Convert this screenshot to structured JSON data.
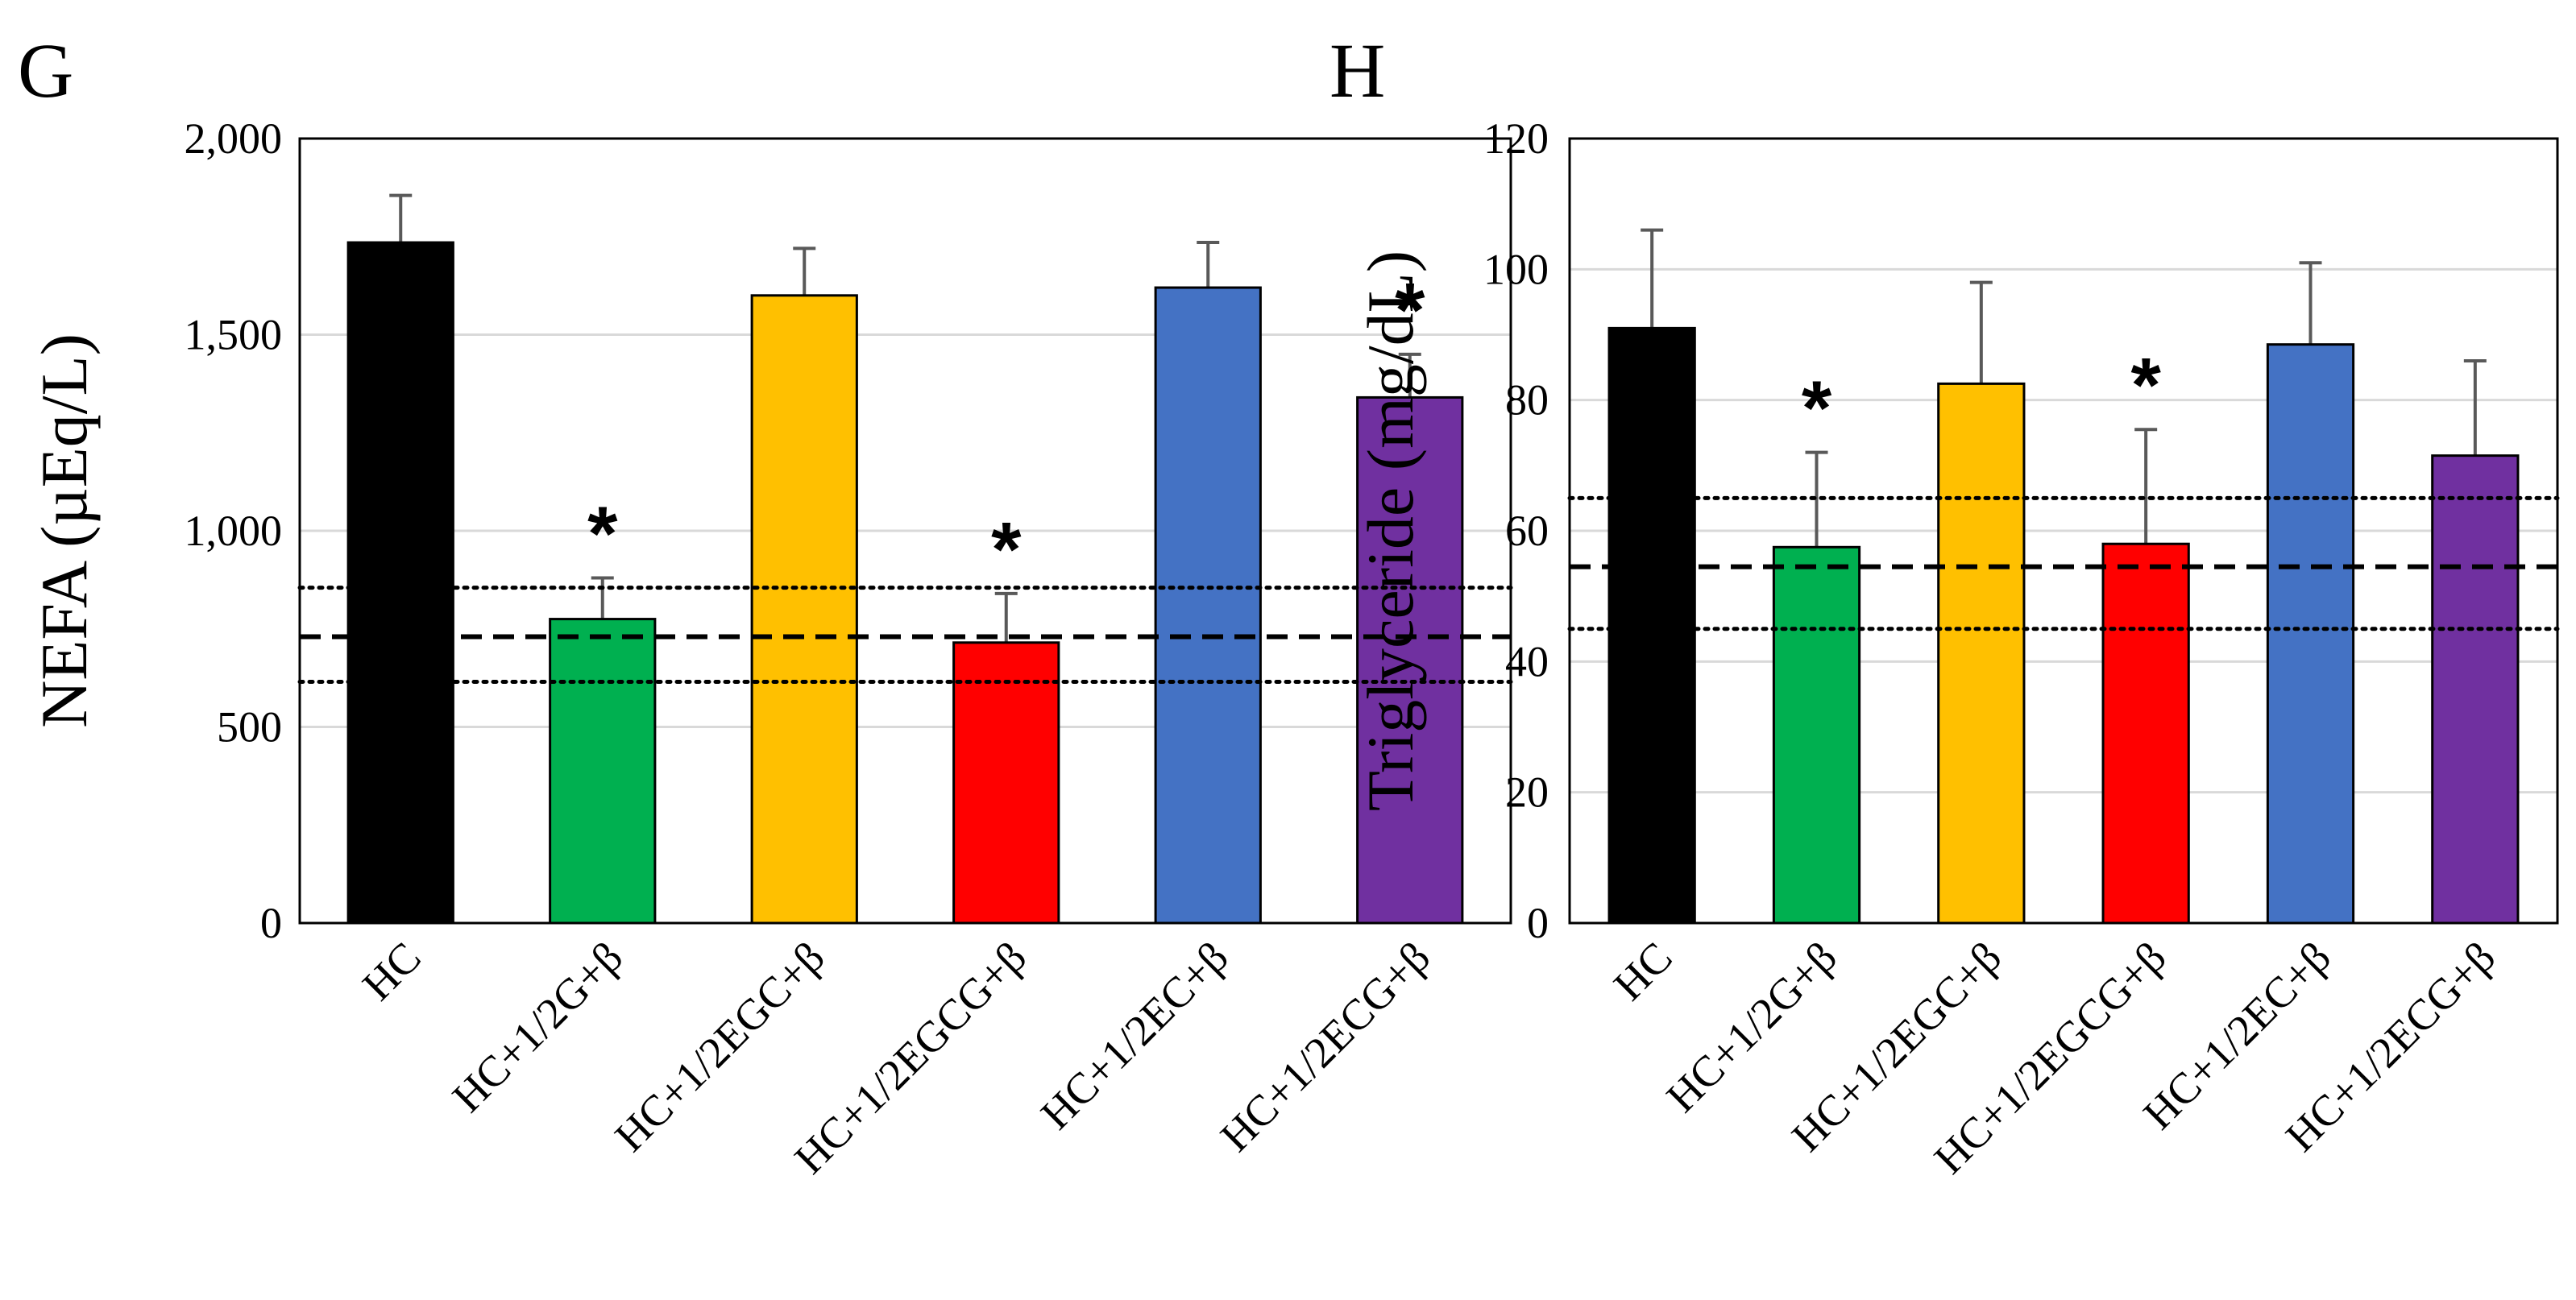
{
  "chart_data": [
    {
      "panel": "G",
      "type": "bar",
      "ylabel": "NEFA (µEq/L)",
      "ylim": [
        0,
        2000
      ],
      "yticks": [
        0,
        500,
        1000,
        1500,
        2000
      ],
      "ytick_labels": [
        "0",
        "500",
        "1,000",
        "1,500",
        "2,000"
      ],
      "grid": true,
      "categories": [
        "HC",
        "HC+1/2G+β",
        "HC+1/2EGC+β",
        "HC+1/2EGCG+β",
        "HC+1/2EC+β",
        "HC+1/2ECG+β"
      ],
      "values": [
        1735,
        775,
        1600,
        715,
        1620,
        1340
      ],
      "errors": [
        120,
        105,
        120,
        125,
        115,
        110
      ],
      "colors": [
        "#000000",
        "#00B050",
        "#FFC000",
        "#FF0000",
        "#4472C4",
        "#7030A0"
      ],
      "significance": [
        "",
        "*",
        "",
        "*",
        "",
        "*"
      ],
      "reference_lines": {
        "mean": 730,
        "upper": 855,
        "lower": 615
      }
    },
    {
      "panel": "H",
      "type": "bar",
      "ylabel": "Triglyceride (mg/dL)",
      "ylim": [
        0,
        120
      ],
      "yticks": [
        0,
        20,
        40,
        60,
        80,
        100,
        120
      ],
      "ytick_labels": [
        "0",
        "20",
        "40",
        "60",
        "80",
        "100",
        "120"
      ],
      "grid": true,
      "categories": [
        "HC",
        "HC+1/2G+β",
        "HC+1/2EGC+β",
        "HC+1/2EGCG+β",
        "HC+1/2EC+β",
        "HC+1/2ECG+β"
      ],
      "values": [
        91,
        57.5,
        82.5,
        58,
        88.5,
        71.5
      ],
      "errors": [
        15,
        14.5,
        15.5,
        17.5,
        12.5,
        14.5
      ],
      "colors": [
        "#000000",
        "#00B050",
        "#FFC000",
        "#FF0000",
        "#4472C4",
        "#7030A0"
      ],
      "significance": [
        "",
        "*",
        "",
        "*",
        "",
        ""
      ],
      "reference_lines": {
        "mean": 54.5,
        "upper": 65,
        "lower": 45
      }
    }
  ]
}
